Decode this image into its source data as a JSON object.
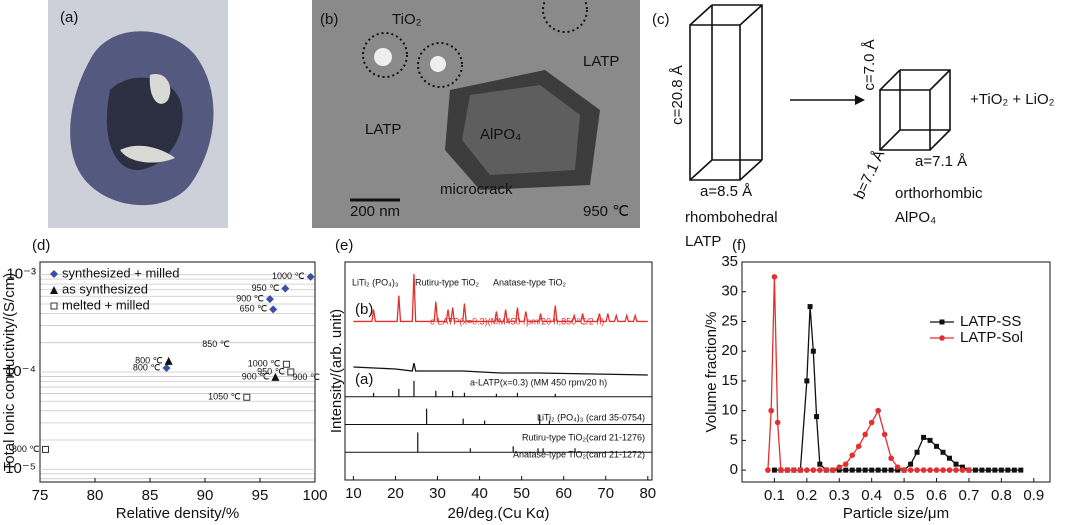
{
  "panel_a": {
    "label": "(a)"
  },
  "panel_b": {
    "label": "(b)",
    "annotations": [
      "TiO₂",
      "LATP",
      "LATP",
      "AlPO₄",
      "microcrack"
    ],
    "scale_bar": "200 nm",
    "temperature": "950 ℃"
  },
  "panel_c": {
    "label": "(c)",
    "rhombohedral": {
      "c": "c=20.8 Å",
      "a": "a=8.5 Å",
      "name": "rhombohedral",
      "compound": "LATP"
    },
    "orthorhombic": {
      "c": "c=7.0 Å",
      "b": "b=7.1 Å",
      "a": "a=7.1 Å",
      "name": "orthorhombic",
      "compound": "AlPO₄"
    },
    "byproducts": "+TiO₂ + LiO₂"
  },
  "chart_data": [
    {
      "type": "scatter",
      "panel_label": "(d)",
      "xlabel": "Relative density/%",
      "ylabel": "Total Ionic conductivity/(S/cm)",
      "xlim": [
        75,
        100
      ],
      "xticks": [
        75,
        80,
        85,
        90,
        95,
        100
      ],
      "ylim": [
        7.4e-06,
        0.00135
      ],
      "yscale": "log",
      "yticks": [
        {
          "value": 1e-05,
          "label": "10⁻⁵"
        },
        {
          "value": 0.0001,
          "label": "10⁻⁴"
        },
        {
          "value": 0.001,
          "label": "10⁻³"
        }
      ],
      "grid": true,
      "legend": "upper left",
      "series": [
        {
          "name": "synthesized + milled",
          "color": "#3b4ea6",
          "marker": "diamond",
          "x": [
            99.6,
            97.3,
            95.9,
            96.2,
            86.5
          ],
          "values": [
            0.00095,
            0.00072,
            0.00056,
            0.00044,
            0.00011
          ],
          "labels": [
            "1000 ℃",
            "950 ℃",
            "900 ℃",
            "650 ℃",
            "800 ℃"
          ]
        },
        {
          "name": "as synthesized",
          "color": "#111111",
          "marker": "triangle",
          "x": [
            86.7,
            96.4
          ],
          "values": [
            0.00013,
            8.9e-05
          ],
          "labels": [
            "800 ℃",
            "900 ℃"
          ]
        },
        {
          "name": "melted + milled",
          "color": "#333333",
          "marker": "open-square",
          "x": [
            97.4,
            97.8,
            93.8,
            75.5
          ],
          "values": [
            0.00012,
            0.0001,
            5.5e-05,
            1.6e-05
          ],
          "labels": [
            "1000 ℃",
            "950 ℃",
            "1050 ℃",
            "800 ℃"
          ]
        }
      ],
      "annotations": [
        {
          "text": "850 ℃",
          "x": 91,
          "y": 0.00019
        },
        {
          "text": "900 ℃",
          "x": 99.2,
          "y": 8.8e-05
        }
      ]
    },
    {
      "type": "line",
      "panel_label": "(e)",
      "xlabel": "2θ/deg.(Cu Kα)",
      "ylabel": "Intensity/(arb. unit)",
      "xlim": [
        8,
        81
      ],
      "xticks": [
        10,
        20,
        30,
        40,
        50,
        60,
        70,
        80
      ],
      "ylim": [
        0,
        110
      ],
      "phase_key": [
        "LiTi₂ (PO₄)₃",
        "Rutiru-type TiO₂",
        "Anatase-type TiO₂"
      ],
      "series": [
        {
          "name": "c-LATP(x=0.3)(MM450 rpm/20 h,850℃/2 h)",
          "tag": "(b)",
          "color": "#e0302f",
          "kind": "trace",
          "x": [
            10,
            14.4,
            14.8,
            15.2,
            20.4,
            20.8,
            21.2,
            24,
            24.4,
            24.8,
            29.2,
            29.6,
            30,
            32.1,
            32.5,
            32.9,
            33.2,
            33.6,
            34,
            36,
            36.4,
            36.8,
            43.6,
            44,
            44.4,
            45.8,
            46.2,
            46.6,
            48.6,
            49,
            49.4,
            50.6,
            51,
            51.4,
            54.1,
            54.5,
            54.9,
            57.6,
            58,
            58.4,
            62.1,
            62.5,
            62.9,
            64.1,
            64.5,
            64.9,
            68.1,
            68.5,
            68.9,
            70.1,
            70.5,
            70.9,
            72.1,
            72.5,
            72.9,
            74.6,
            75,
            75.4,
            76.6,
            77,
            77.4,
            80
          ],
          "values": [
            80,
            80,
            86,
            80,
            80,
            93,
            80,
            80,
            104,
            80,
            80,
            90,
            80,
            80,
            86,
            80,
            80,
            87,
            80,
            80,
            89,
            80,
            80,
            85,
            80,
            80,
            86,
            80,
            80,
            87,
            80,
            80,
            85,
            80,
            80,
            84,
            80,
            80,
            88,
            80,
            80,
            83,
            80,
            80,
            84,
            80,
            80,
            84,
            80,
            80,
            84,
            80,
            80,
            83,
            80,
            80,
            83,
            80,
            80,
            83,
            80,
            80
          ]
        },
        {
          "name": "a-LATP(x=0.3) (MM 450 rpm/20 h)",
          "tag": "(a)",
          "color": "#111111",
          "kind": "trace",
          "x": [
            10,
            20,
            24,
            24.4,
            24.8,
            29,
            36,
            45,
            54,
            80
          ],
          "values": [
            57,
            56,
            55,
            59,
            55,
            55,
            55,
            54,
            54,
            53
          ]
        },
        {
          "name": "LiTi₂ (PO₄)₃ (card 35-0754)",
          "color": "#111111",
          "kind": "stick",
          "baseline": 42,
          "x": [
            14.8,
            20.8,
            24.4,
            29.6,
            33.6,
            36.4,
            44,
            49,
            58
          ],
          "values": [
            44,
            46,
            50,
            45,
            45,
            44,
            43.5,
            44,
            43.5
          ]
        },
        {
          "name": "Rutiru-type TiO₂(card 21-1276)",
          "color": "#111111",
          "kind": "stick",
          "baseline": 28,
          "x": [
            27.4,
            36.1,
            41.2,
            54.3,
            56.6
          ],
          "values": [
            36,
            31,
            30,
            33,
            30
          ]
        },
        {
          "name": "Anatase-type TiO₂(card 21-1272)",
          "color": "#111111",
          "kind": "stick",
          "baseline": 14,
          "x": [
            25.3,
            37.8,
            48,
            53.9,
            55.1,
            62.7
          ],
          "values": [
            24,
            16,
            17,
            16,
            16,
            16
          ]
        }
      ]
    },
    {
      "type": "line",
      "panel_label": "(f)",
      "xlabel": "Particle size/μm",
      "ylabel": "Volume fraction/%",
      "xlim": [
        0,
        0.95
      ],
      "xticks": [
        0.1,
        0.2,
        0.3,
        0.4,
        0.5,
        0.6,
        0.7,
        0.8,
        0.9
      ],
      "ylim": [
        -2,
        35
      ],
      "yticks": [
        0,
        5,
        10,
        15,
        20,
        25,
        30,
        35
      ],
      "legend": "upper right",
      "series": [
        {
          "name": "LATP-SS",
          "color": "#111111",
          "marker": "square",
          "kind": "trace",
          "x": [
            0.1,
            0.12,
            0.14,
            0.16,
            0.18,
            0.2,
            0.21,
            0.22,
            0.23,
            0.24,
            0.26,
            0.28,
            0.3,
            0.32,
            0.34,
            0.36,
            0.38,
            0.4,
            0.42,
            0.44,
            0.46,
            0.48,
            0.5,
            0.52,
            0.54,
            0.56,
            0.58,
            0.6,
            0.62,
            0.64,
            0.66,
            0.68,
            0.7,
            0.72,
            0.74,
            0.76,
            0.78,
            0.8,
            0.82,
            0.84,
            0.86
          ],
          "values": [
            0,
            0,
            0,
            0,
            0,
            15,
            27.5,
            20,
            9,
            1,
            0,
            0,
            0,
            0,
            0,
            0,
            0,
            0,
            0,
            0,
            0,
            0,
            0,
            1,
            3,
            5.5,
            5,
            4,
            3,
            2,
            1,
            0.5,
            0,
            0,
            0,
            0,
            0,
            0,
            0,
            0,
            0
          ]
        },
        {
          "name": "LATP-Sol",
          "color": "#e0302f",
          "marker": "circle",
          "kind": "trace",
          "x": [
            0.08,
            0.09,
            0.1,
            0.11,
            0.12,
            0.14,
            0.16,
            0.18,
            0.2,
            0.22,
            0.24,
            0.26,
            0.28,
            0.3,
            0.32,
            0.34,
            0.36,
            0.38,
            0.4,
            0.42,
            0.44,
            0.46,
            0.48,
            0.5,
            0.52,
            0.54,
            0.56,
            0.58,
            0.6,
            0.62,
            0.64,
            0.66,
            0.68,
            0.7
          ],
          "values": [
            0,
            10,
            32.5,
            8,
            0,
            0,
            0,
            0,
            0,
            0,
            0,
            0,
            0,
            0.5,
            1,
            2.5,
            4,
            6,
            8,
            10,
            6,
            2,
            0.5,
            0,
            0,
            0,
            0,
            0,
            0,
            0,
            0,
            0,
            0,
            0
          ]
        }
      ]
    }
  ]
}
